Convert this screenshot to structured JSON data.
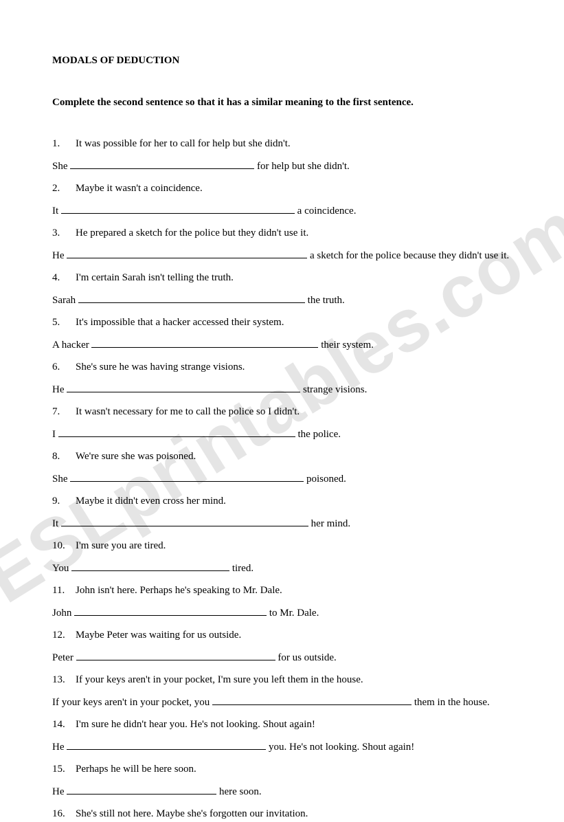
{
  "title": "MODALS OF DEDUCTION",
  "instruction": "Complete the second sentence so that it has a similar meaning to the first sentence.",
  "watermark": "ESLprintables.com",
  "items": [
    {
      "num": "1.",
      "q": "It was possible for her to call for help but she didn't.",
      "a_pre": "She ",
      "blank_w": 268,
      "a_post": " for help but she didn't."
    },
    {
      "num": "2.",
      "q": "Maybe it wasn't a coincidence.",
      "a_pre": "It ",
      "blank_w": 340,
      "a_post": " a coincidence."
    },
    {
      "num": "3.",
      "q": "He prepared a sketch for the police but they didn't use it.",
      "a_pre": "He ",
      "blank_w": 350,
      "a_post": " a sketch for the police because they didn't use it."
    },
    {
      "num": "4.",
      "q": "I'm certain Sarah isn't telling the truth.",
      "a_pre": "Sarah ",
      "blank_w": 330,
      "a_post": " the truth."
    },
    {
      "num": "5.",
      "q": "It's impossible that a hacker accessed their system.",
      "a_pre": "A hacker ",
      "blank_w": 330,
      "a_post": " their system."
    },
    {
      "num": "6.",
      "q": "She's sure he was having strange visions.",
      "a_pre": "He ",
      "blank_w": 340,
      "a_post": " strange visions."
    },
    {
      "num": "7.",
      "q": "It wasn't necessary for me to call the police so I didn't.",
      "a_pre": "I ",
      "blank_w": 345,
      "a_post": " the police."
    },
    {
      "num": "8.",
      "q": "We're sure she was poisoned.",
      "a_pre": "She ",
      "blank_w": 340,
      "a_post": " poisoned."
    },
    {
      "num": "9.",
      "q": "Maybe it didn't even cross her mind.",
      "a_pre": "It ",
      "blank_w": 360,
      "a_post": " her mind."
    },
    {
      "num": "10.",
      "q": "I'm sure you are tired.",
      "a_pre": "You ",
      "blank_w": 230,
      "a_post": " tired."
    },
    {
      "num": "11.",
      "q": "John isn't here. Perhaps he's speaking to Mr. Dale.",
      "a_pre": "John ",
      "blank_w": 280,
      "a_post": " to Mr. Dale."
    },
    {
      "num": "12.",
      "q": "Maybe Peter was waiting for us outside.",
      "a_pre": "Peter ",
      "blank_w": 290,
      "a_post": " for us outside."
    },
    {
      "num": "13.",
      "q": "If your keys aren't in your pocket, I'm sure you left them in the house.",
      "a_pre": "If your keys aren't in your pocket, you ",
      "blank_w": 290,
      "a_post": " them in the house."
    },
    {
      "num": "14.",
      "q": "I'm sure he didn't hear you. He's not looking.  Shout again!",
      "a_pre": "He ",
      "blank_w": 290,
      "a_post": " you. He's not looking.  Shout again!"
    },
    {
      "num": "15.",
      "q": "Perhaps he will be here soon.",
      "a_pre": "He ",
      "blank_w": 218,
      "a_post": " here soon."
    },
    {
      "num": "16.",
      "q": "She's still not here. Maybe she's forgotten our invitation.",
      "a_pre": "",
      "blank_w": 0,
      "a_post": ""
    }
  ]
}
